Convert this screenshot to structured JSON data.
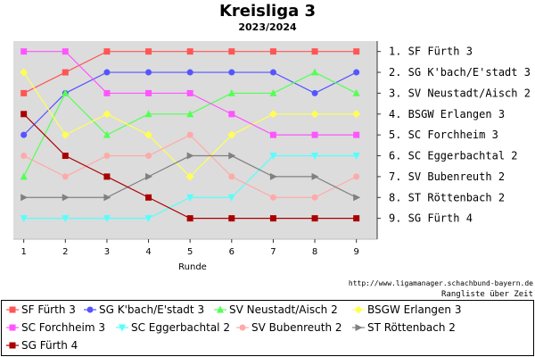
{
  "header": {
    "title": "Kreisliga 3",
    "subtitle": "2023/2024"
  },
  "footer": {
    "source_url": "http://www.ligamanager.schachbund-bayern.de",
    "caption": "Rangliste über Zeit"
  },
  "chart_data": {
    "type": "line",
    "title": "Kreisliga 3",
    "subtitle": "2023/2024",
    "xlabel": "Runde",
    "ylabel": "",
    "x": [
      1,
      2,
      3,
      4,
      5,
      6,
      7,
      8,
      9
    ],
    "xlim": [
      0.75,
      9.5
    ],
    "ylim": [
      10,
      0.5
    ],
    "y_inverted": true,
    "grid": false,
    "legend_position": "bottom",
    "final_ranking": [
      "1.  SF Fürth 3",
      "2.  SG K'bach/E'stadt 3",
      "3.  SV Neustadt/Aisch 2",
      "4.  BSGW Erlangen 3",
      "5.  SC Forchheim 3",
      "6.  SC Eggerbachtal 2",
      "7.  SV Bubenreuth 2",
      "8.  ST Röttenbach 2",
      "9.  SG Fürth 4"
    ],
    "series": [
      {
        "name": "SF Fürth 3",
        "color": "#ff5555",
        "marker": "square",
        "values": [
          3,
          2,
          1,
          1,
          1,
          1,
          1,
          1,
          1
        ]
      },
      {
        "name": "SG K'bach/E'stadt 3",
        "color": "#5555ff",
        "marker": "circle",
        "values": [
          5,
          3,
          2,
          2,
          2,
          2,
          2,
          3,
          2
        ]
      },
      {
        "name": "SV Neustadt/Aisch 2",
        "color": "#55ff55",
        "marker": "triangle-up",
        "values": [
          7,
          3,
          5,
          4,
          4,
          3,
          3,
          2,
          3
        ]
      },
      {
        "name": "BSGW Erlangen 3",
        "color": "#ffff55",
        "marker": "diamond",
        "values": [
          2,
          5,
          4,
          5,
          7,
          5,
          4,
          4,
          4
        ]
      },
      {
        "name": "SC Forchheim 3",
        "color": "#ff55ff",
        "marker": "square",
        "values": [
          1,
          1,
          3,
          3,
          3,
          4,
          5,
          5,
          5
        ]
      },
      {
        "name": "SC Eggerbachtal 2",
        "color": "#55ffff",
        "marker": "triangle-down",
        "values": [
          9,
          9,
          9,
          9,
          8,
          8,
          6,
          6,
          6
        ]
      },
      {
        "name": "SV Bubenreuth 2",
        "color": "#ffaaaa",
        "marker": "circle",
        "values": [
          6,
          7,
          6,
          6,
          5,
          7,
          8,
          8,
          7
        ]
      },
      {
        "name": "ST Röttenbach 2",
        "color": "#808080",
        "marker": "triangle-right",
        "values": [
          8,
          8,
          8,
          7,
          6,
          6,
          7,
          7,
          8
        ]
      },
      {
        "name": "SG Fürth 4",
        "color": "#aa0000",
        "marker": "square",
        "values": [
          4,
          6,
          7,
          8,
          9,
          9,
          9,
          9,
          9
        ]
      }
    ]
  }
}
